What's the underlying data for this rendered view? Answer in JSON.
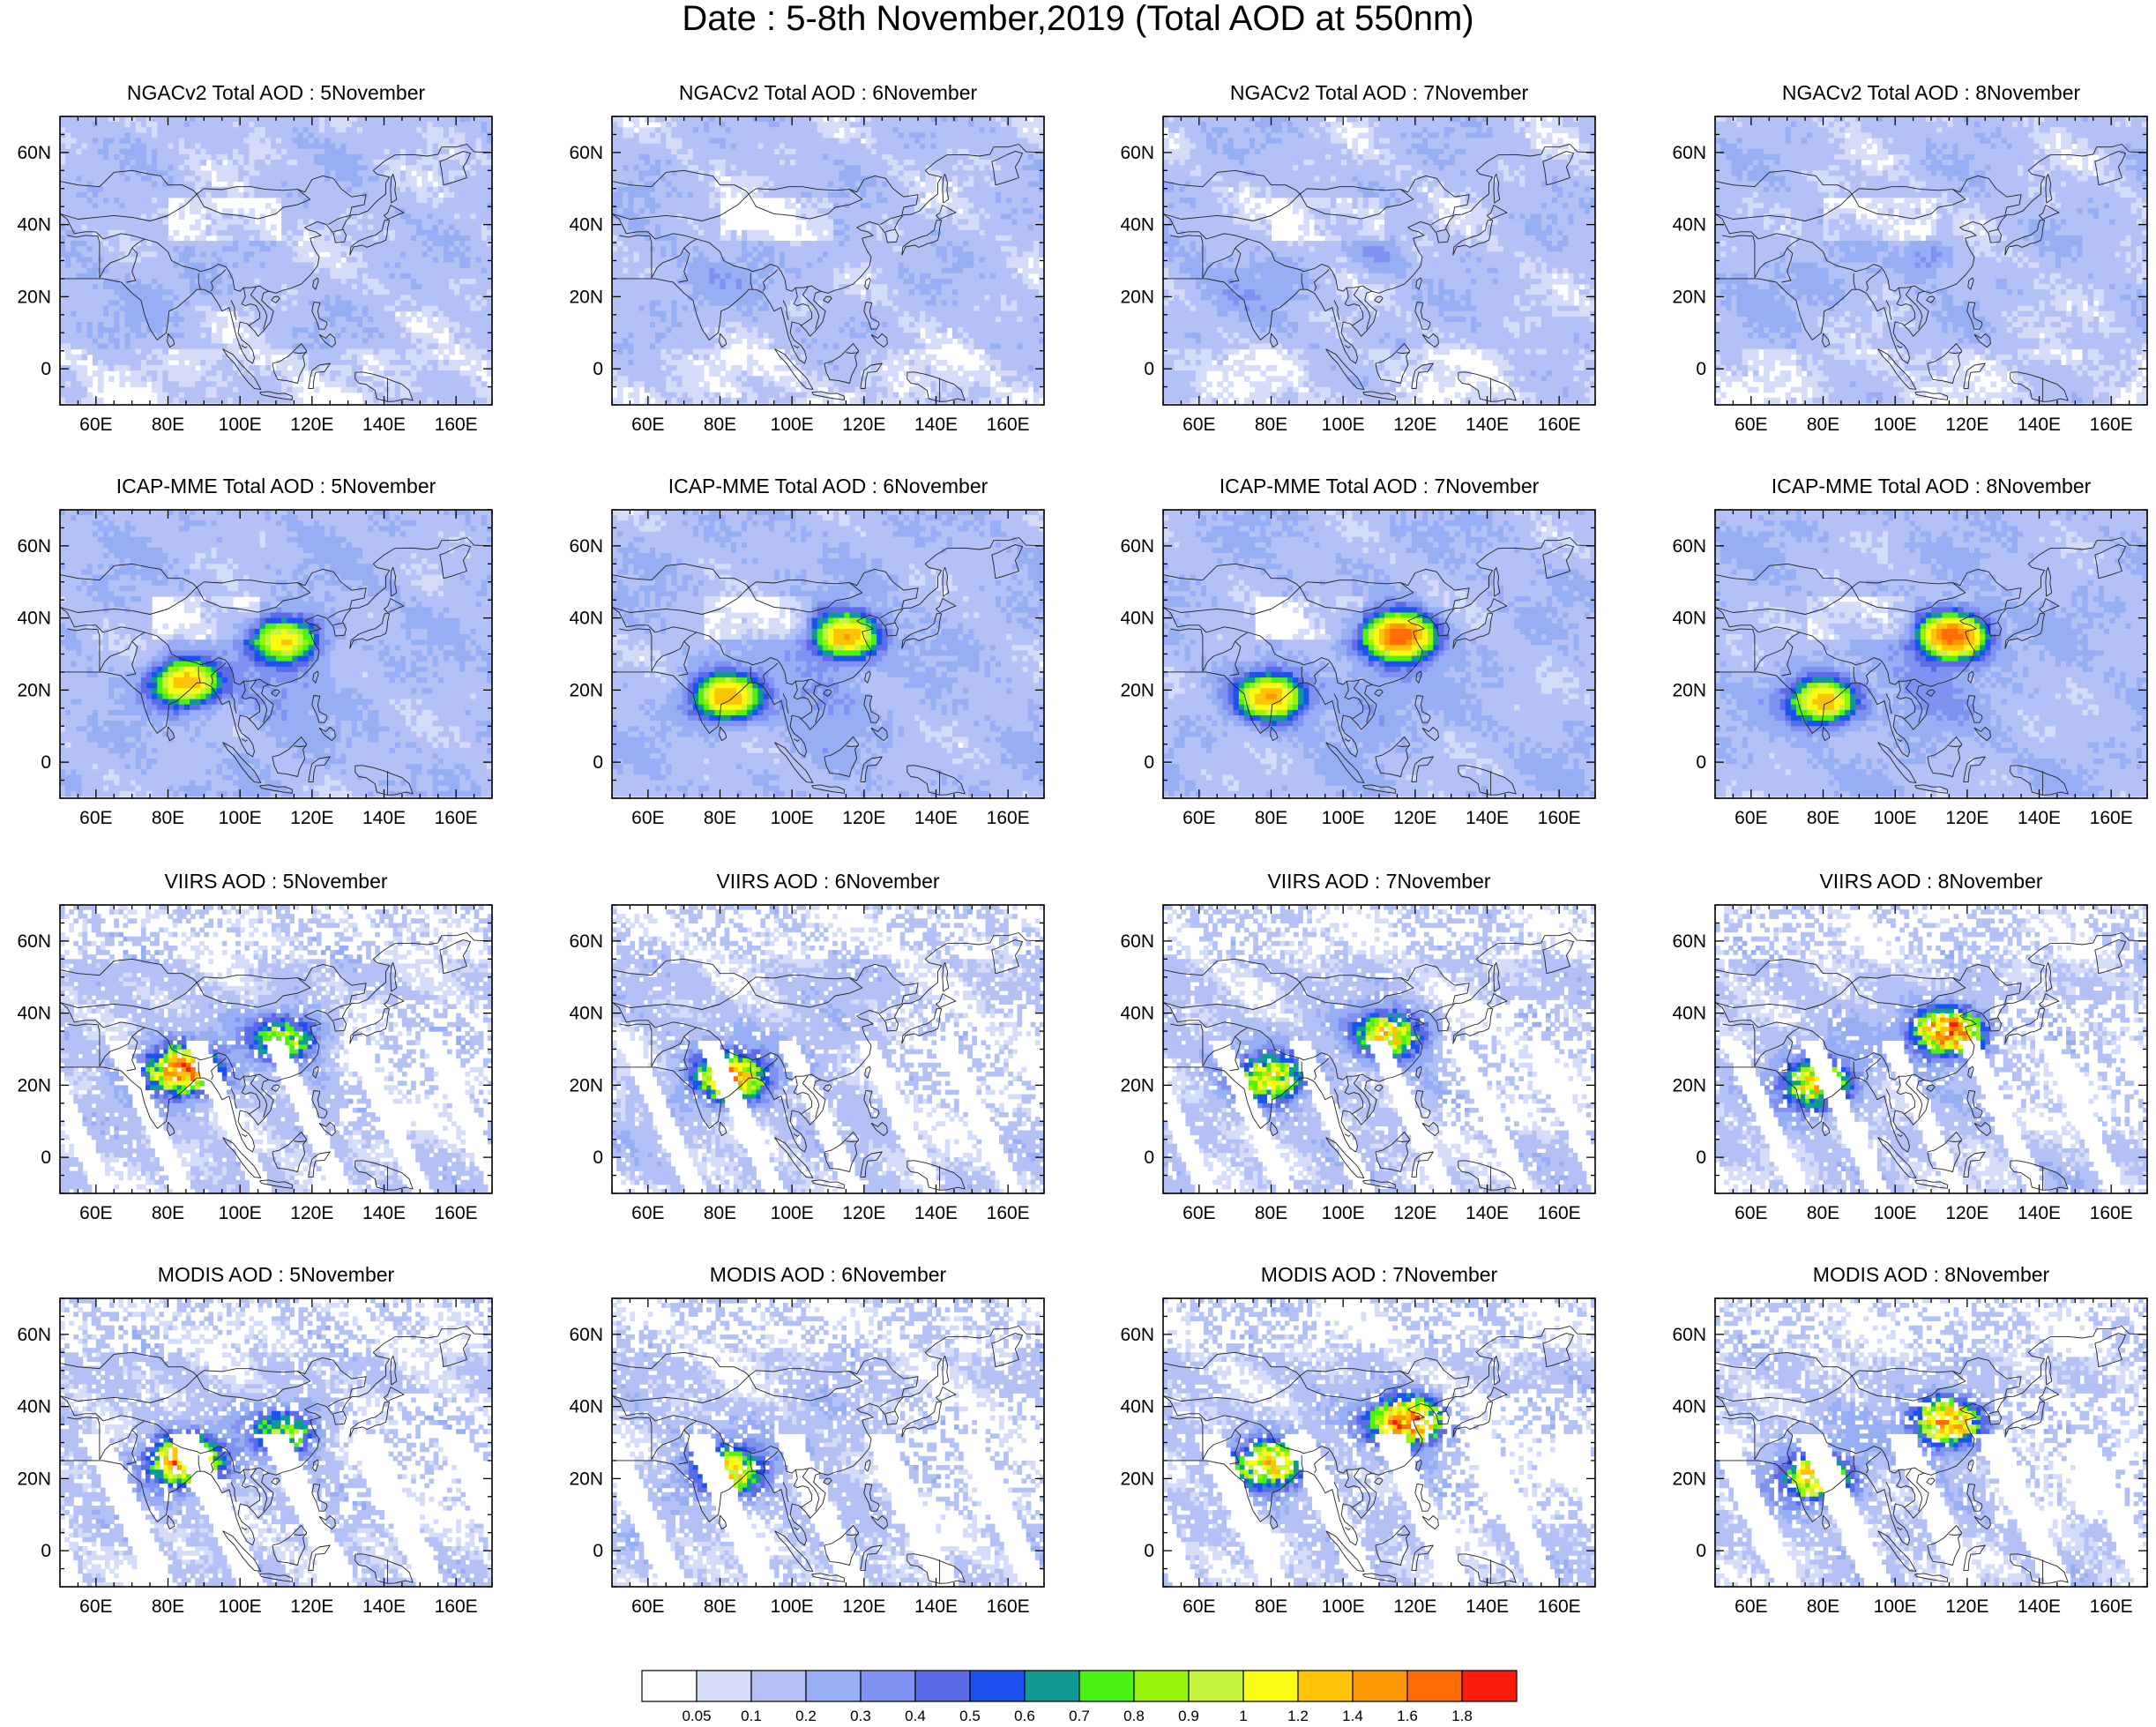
{
  "title": "Date : 5-8th November,2019 (Total AOD at 550nm)",
  "chart_data": {
    "type": "heatmap",
    "title": "Date : 5-8th November,2019 (Total AOD at 550nm)",
    "xlim": [
      50,
      170
    ],
    "ylim": [
      -10,
      70
    ],
    "x_ticks": [
      "60E",
      "80E",
      "100E",
      "120E",
      "140E",
      "160E"
    ],
    "x_tick_values": [
      60,
      80,
      100,
      120,
      140,
      160
    ],
    "y_ticks": [
      "60N",
      "40N",
      "20N",
      "0"
    ],
    "y_tick_values": [
      60,
      40,
      20,
      0
    ],
    "panels": [
      {
        "title": "NGACv2 Total AOD : 5November",
        "model": "NGACv2",
        "day": 5
      },
      {
        "title": "NGACv2 Total AOD : 6November",
        "model": "NGACv2",
        "day": 6
      },
      {
        "title": "NGACv2 Total AOD : 7November",
        "model": "NGACv2",
        "day": 7
      },
      {
        "title": "NGACv2 Total AOD : 8November",
        "model": "NGACv2",
        "day": 8
      },
      {
        "title": "ICAP-MME Total AOD : 5November",
        "model": "ICAP-MME",
        "day": 5
      },
      {
        "title": "ICAP-MME Total AOD : 6November",
        "model": "ICAP-MME",
        "day": 6
      },
      {
        "title": "ICAP-MME Total AOD : 7November",
        "model": "ICAP-MME",
        "day": 7
      },
      {
        "title": "ICAP-MME Total AOD : 8November",
        "model": "ICAP-MME",
        "day": 8
      },
      {
        "title": "VIIRS AOD : 5November",
        "model": "VIIRS",
        "day": 5
      },
      {
        "title": "VIIRS AOD : 6November",
        "model": "VIIRS",
        "day": 6
      },
      {
        "title": "VIIRS AOD : 7November",
        "model": "VIIRS",
        "day": 7
      },
      {
        "title": "VIIRS AOD : 8November",
        "model": "VIIRS",
        "day": 8
      },
      {
        "title": "MODIS AOD : 5November",
        "model": "MODIS",
        "day": 5
      },
      {
        "title": "MODIS AOD : 6November",
        "model": "MODIS",
        "day": 6
      },
      {
        "title": "MODIS AOD : 7November",
        "model": "MODIS",
        "day": 7
      },
      {
        "title": "MODIS AOD : 8November",
        "model": "MODIS",
        "day": 8
      }
    ],
    "colorbar": {
      "levels": [
        "0.05",
        "0.1",
        "0.2",
        "0.3",
        "0.4",
        "0.5",
        "0.6",
        "0.7",
        "0.8",
        "0.9",
        "1",
        "1.2",
        "1.4",
        "1.6",
        "1.8"
      ],
      "colors": [
        "#ffffff",
        "#d4dcfa",
        "#b3c1f6",
        "#97aef5",
        "#7f92f1",
        "#5c6ce8",
        "#1b52f0",
        "#0f9a95",
        "#4cf213",
        "#98f406",
        "#c5f43c",
        "#fbfb14",
        "#fdc306",
        "#fd9803",
        "#fe6d06",
        "#fb1a0c"
      ]
    },
    "hotspots": [
      {
        "model": "ICAP-MME",
        "day": 5,
        "lon": 85,
        "lat": 22,
        "level": 1.2
      },
      {
        "model": "ICAP-MME",
        "day": 5,
        "lon": 113,
        "lat": 34,
        "level": 1.0
      },
      {
        "model": "ICAP-MME",
        "day": 6,
        "lon": 82,
        "lat": 18,
        "level": 1.2
      },
      {
        "model": "ICAP-MME",
        "day": 6,
        "lon": 115,
        "lat": 35,
        "level": 1.2
      },
      {
        "model": "ICAP-MME",
        "day": 7,
        "lon": 80,
        "lat": 18,
        "level": 1.2
      },
      {
        "model": "ICAP-MME",
        "day": 7,
        "lon": 116,
        "lat": 35,
        "level": 1.6
      },
      {
        "model": "ICAP-MME",
        "day": 8,
        "lon": 80,
        "lat": 17,
        "level": 1.2
      },
      {
        "model": "ICAP-MME",
        "day": 8,
        "lon": 116,
        "lat": 35,
        "level": 1.6
      },
      {
        "model": "VIIRS",
        "day": 5,
        "lon": 84,
        "lat": 24,
        "level": 1.6
      },
      {
        "model": "VIIRS",
        "day": 5,
        "lon": 113,
        "lat": 33,
        "level": 0.9
      },
      {
        "model": "VIIRS",
        "day": 6,
        "lon": 83,
        "lat": 22,
        "level": 1.4
      },
      {
        "model": "VIIRS",
        "day": 7,
        "lon": 113,
        "lat": 34,
        "level": 1.2
      },
      {
        "model": "VIIRS",
        "day": 7,
        "lon": 80,
        "lat": 22,
        "level": 1.0
      },
      {
        "model": "VIIRS",
        "day": 8,
        "lon": 115,
        "lat": 35,
        "level": 1.8
      },
      {
        "model": "VIIRS",
        "day": 8,
        "lon": 78,
        "lat": 20,
        "level": 1.2
      },
      {
        "model": "MODIS",
        "day": 5,
        "lon": 85,
        "lat": 25,
        "level": 1.6
      },
      {
        "model": "MODIS",
        "day": 5,
        "lon": 113,
        "lat": 33,
        "level": 0.8
      },
      {
        "model": "MODIS",
        "day": 6,
        "lon": 82,
        "lat": 22,
        "level": 1.2
      },
      {
        "model": "MODIS",
        "day": 7,
        "lon": 118,
        "lat": 36,
        "level": 1.8
      },
      {
        "model": "MODIS",
        "day": 7,
        "lon": 80,
        "lat": 24,
        "level": 1.2
      },
      {
        "model": "MODIS",
        "day": 8,
        "lon": 115,
        "lat": 36,
        "level": 1.6
      },
      {
        "model": "MODIS",
        "day": 8,
        "lon": 78,
        "lat": 20,
        "level": 1.2
      }
    ]
  }
}
